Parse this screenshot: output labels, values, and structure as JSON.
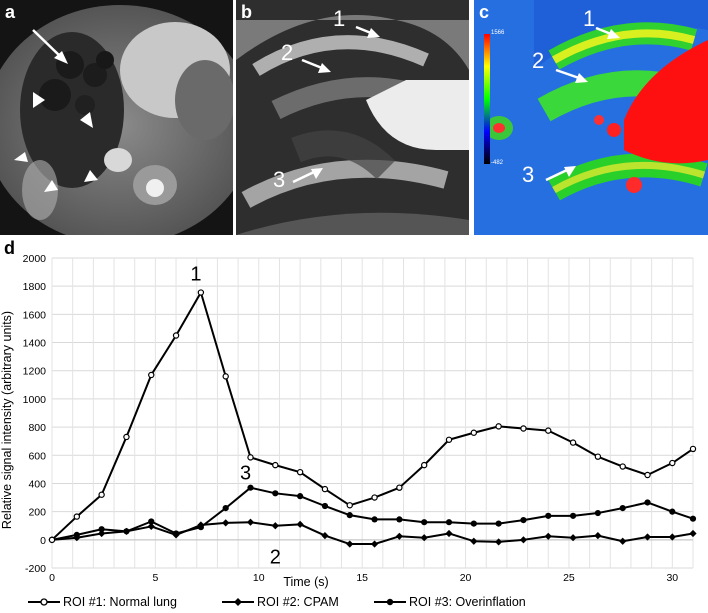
{
  "panels": {
    "a": {
      "label": "a",
      "annotations": [
        {
          "kind": "arrow",
          "color": "#ffffff"
        },
        {
          "kind": "arrowhead",
          "color": "#ffffff"
        },
        {
          "kind": "arrowhead",
          "color": "#ffffff"
        },
        {
          "kind": "arrowhead",
          "color": "#ffffff"
        },
        {
          "kind": "arrowhead",
          "color": "#ffffff"
        },
        {
          "kind": "arrowhead",
          "color": "#ffffff"
        }
      ]
    },
    "b": {
      "label": "b",
      "arrows": [
        {
          "label": "1"
        },
        {
          "label": "2"
        },
        {
          "label": "3"
        }
      ]
    },
    "c": {
      "label": "c",
      "colorbar": {
        "max_label": "1566",
        "min_label": "-482"
      },
      "arrows": [
        {
          "label": "1"
        },
        {
          "label": "2"
        },
        {
          "label": "3"
        }
      ]
    }
  },
  "figure_label_d": "d",
  "chart_data": {
    "type": "line",
    "title": "",
    "xlabel": "Time (s)",
    "ylabel": "Relative signal intensity (arbitrary units)",
    "xlim": [
      0,
      31
    ],
    "ylim": [
      -200,
      2000
    ],
    "xticks": [
      "0",
      "5",
      "10",
      "15",
      "20",
      "25",
      "30"
    ],
    "yticks": [
      "-200",
      "0",
      "200",
      "400",
      "600",
      "800",
      "1000",
      "1200",
      "1400",
      "1600",
      "1800",
      "2000"
    ],
    "grid": true,
    "legend_position": "bottom",
    "curve_annotations": [
      {
        "text": "1",
        "series": 0
      },
      {
        "text": "2",
        "series": 1
      },
      {
        "text": "3",
        "series": 2
      }
    ],
    "series": [
      {
        "name": "ROI #1: Normal lung",
        "marker": "open-circle",
        "x": [
          0,
          1.2,
          2.4,
          3.6,
          4.8,
          6.0,
          7.2,
          8.4,
          9.6,
          10.8,
          12.0,
          13.2,
          14.4,
          15.6,
          16.8,
          18.0,
          19.2,
          20.4,
          21.6,
          22.8,
          24.0,
          25.2,
          26.4,
          27.6,
          28.8,
          30.0,
          31.0
        ],
        "y": [
          0,
          165,
          320,
          730,
          1170,
          1450,
          1755,
          1160,
          585,
          530,
          480,
          360,
          245,
          300,
          370,
          530,
          710,
          760,
          805,
          790,
          775,
          690,
          590,
          520,
          460,
          545,
          645
        ]
      },
      {
        "name": "ROI #2: CPAM",
        "marker": "diamond",
        "x": [
          0,
          1.2,
          2.4,
          3.6,
          4.8,
          6.0,
          7.2,
          8.4,
          9.6,
          10.8,
          12.0,
          13.2,
          14.4,
          15.6,
          16.8,
          18.0,
          19.2,
          20.4,
          21.6,
          22.8,
          24.0,
          25.2,
          26.4,
          27.6,
          28.8,
          30.0,
          31.0
        ],
        "y": [
          0,
          15,
          45,
          60,
          95,
          35,
          105,
          120,
          125,
          100,
          110,
          30,
          -30,
          -30,
          25,
          15,
          45,
          -10,
          -15,
          0,
          25,
          15,
          30,
          -10,
          20,
          20,
          45
        ]
      },
      {
        "name": "ROI #3: Overinflation",
        "marker": "filled-circle",
        "x": [
          0,
          1.2,
          2.4,
          3.6,
          4.8,
          6.0,
          7.2,
          8.4,
          9.6,
          10.8,
          12.0,
          13.2,
          14.4,
          15.6,
          16.8,
          18.0,
          19.2,
          20.4,
          21.6,
          22.8,
          24.0,
          25.2,
          26.4,
          27.6,
          28.8,
          30.0,
          31.0
        ],
        "y": [
          0,
          35,
          75,
          60,
          130,
          45,
          90,
          225,
          370,
          330,
          310,
          240,
          175,
          145,
          145,
          125,
          125,
          115,
          115,
          140,
          170,
          170,
          190,
          225,
          265,
          200,
          150
        ]
      }
    ]
  }
}
